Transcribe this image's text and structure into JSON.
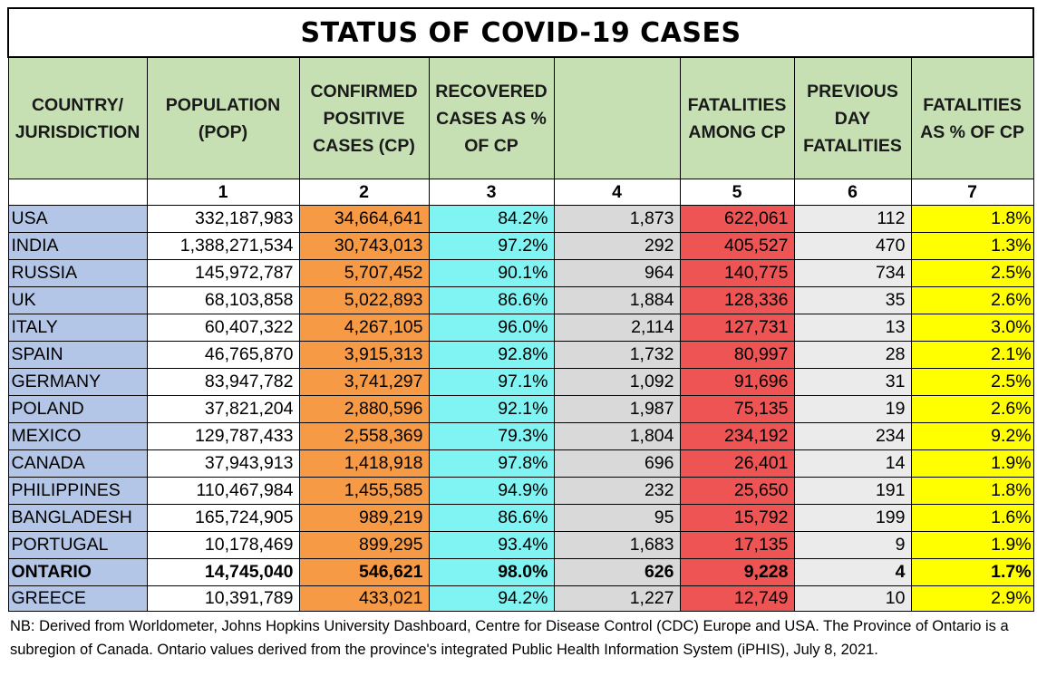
{
  "title": "STATUS OF COVID-19 CASES",
  "headers": [
    "COUNTRY/ JURISDICTION",
    "POPULATION (POP)",
    "CONFIRMED POSITIVE CASES (CP)",
    "RECOVERED CASES AS % OF CP",
    "",
    "FATALITIES AMONG CP",
    "PREVIOUS DAY FATALITIES",
    "FATALITIES AS % OF CP"
  ],
  "column_numbers": [
    "",
    "1",
    "2",
    "3",
    "4",
    "5",
    "6",
    "7"
  ],
  "rows": [
    {
      "country": "USA",
      "pop": "332,187,983",
      "confirmed": "34,664,641",
      "recovered": "84.2%",
      "col4": "1,873",
      "fatalities": "622,061",
      "prev_day": "112",
      "fat_pct": "1.8%"
    },
    {
      "country": "INDIA",
      "pop": "1,388,271,534",
      "confirmed": "30,743,013",
      "recovered": "97.2%",
      "col4": "292",
      "fatalities": "405,527",
      "prev_day": "470",
      "fat_pct": "1.3%"
    },
    {
      "country": "RUSSIA",
      "pop": "145,972,787",
      "confirmed": "5,707,452",
      "recovered": "90.1%",
      "col4": "964",
      "fatalities": "140,775",
      "prev_day": "734",
      "fat_pct": "2.5%"
    },
    {
      "country": "UK",
      "pop": "68,103,858",
      "confirmed": "5,022,893",
      "recovered": "86.6%",
      "col4": "1,884",
      "fatalities": "128,336",
      "prev_day": "35",
      "fat_pct": "2.6%"
    },
    {
      "country": "ITALY",
      "pop": "60,407,322",
      "confirmed": "4,267,105",
      "recovered": "96.0%",
      "col4": "2,114",
      "fatalities": "127,731",
      "prev_day": "13",
      "fat_pct": "3.0%"
    },
    {
      "country": "SPAIN",
      "pop": "46,765,870",
      "confirmed": "3,915,313",
      "recovered": "92.8%",
      "col4": "1,732",
      "fatalities": "80,997",
      "prev_day": "28",
      "fat_pct": "2.1%"
    },
    {
      "country": "GERMANY",
      "pop": "83,947,782",
      "confirmed": "3,741,297",
      "recovered": "97.1%",
      "col4": "1,092",
      "fatalities": "91,696",
      "prev_day": "31",
      "fat_pct": "2.5%"
    },
    {
      "country": "POLAND",
      "pop": "37,821,204",
      "confirmed": "2,880,596",
      "recovered": "92.1%",
      "col4": "1,987",
      "fatalities": "75,135",
      "prev_day": "19",
      "fat_pct": "2.6%"
    },
    {
      "country": "MEXICO",
      "pop": "129,787,433",
      "confirmed": "2,558,369",
      "recovered": "79.3%",
      "col4": "1,804",
      "fatalities": "234,192",
      "prev_day": "234",
      "fat_pct": "9.2%"
    },
    {
      "country": "CANADA",
      "pop": "37,943,913",
      "confirmed": "1,418,918",
      "recovered": "97.8%",
      "col4": "696",
      "fatalities": "26,401",
      "prev_day": "14",
      "fat_pct": "1.9%"
    },
    {
      "country": "PHILIPPINES",
      "pop": "110,467,984",
      "confirmed": "1,455,585",
      "recovered": "94.9%",
      "col4": "232",
      "fatalities": "25,650",
      "prev_day": "191",
      "fat_pct": "1.8%"
    },
    {
      "country": "BANGLADESH",
      "pop": "165,724,905",
      "confirmed": "989,219",
      "recovered": "86.6%",
      "col4": "95",
      "fatalities": "15,792",
      "prev_day": "199",
      "fat_pct": "1.6%"
    },
    {
      "country": "PORTUGAL",
      "pop": "10,178,469",
      "confirmed": "899,295",
      "recovered": "93.4%",
      "col4": "1,683",
      "fatalities": "17,135",
      "prev_day": "9",
      "fat_pct": "1.9%"
    },
    {
      "country": "ONTARIO",
      "pop": "14,745,040",
      "confirmed": "546,621",
      "recovered": "98.0%",
      "col4": "626",
      "fatalities": "9,228",
      "prev_day": "4",
      "fat_pct": "1.7%"
    },
    {
      "country": "GREECE",
      "pop": "10,391,789",
      "confirmed": "433,021",
      "recovered": "94.2%",
      "col4": "1,227",
      "fatalities": "12,749",
      "prev_day": "10",
      "fat_pct": "2.9%"
    }
  ],
  "note": "NB: Derived from Worldometer, Johns Hopkins University Dashboard, Centre for Disease Control (CDC) Europe and USA. The Province of Ontario is a subregion of Canada. Ontario values derived from the province's integrated Public Health Information System (iPHIS), July 8, 2021.",
  "colors": {
    "header": "#c6e0b4",
    "country": "#b4c6e7",
    "confirmed": "#f79a46",
    "recovered": "#7ff4f2",
    "col4": "#d9d9d9",
    "fatalities": "#ef5454",
    "prev_day": "#ebebeb",
    "fat_pct": "#ffff00"
  }
}
